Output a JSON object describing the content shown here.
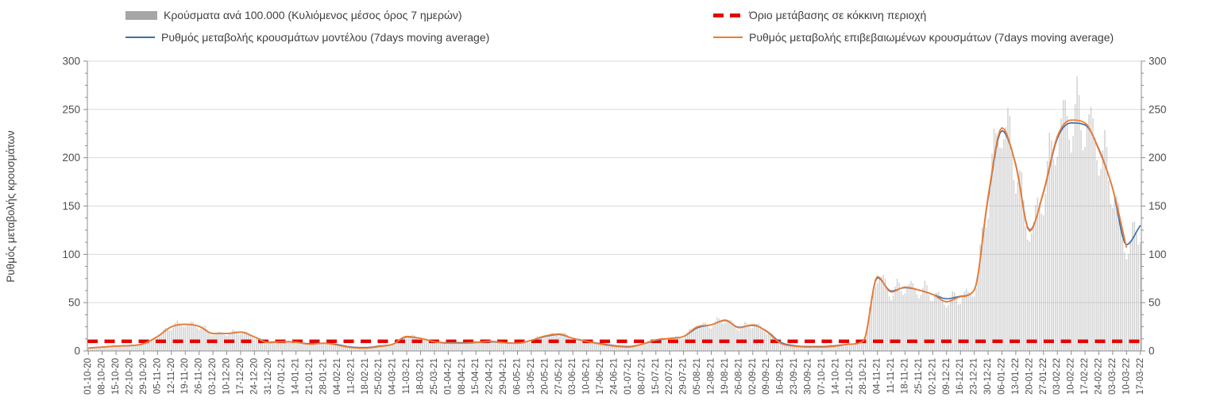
{
  "figure": {
    "background": "#ffffff"
  },
  "chart_data": {
    "type": "bar+line",
    "title": "",
    "x_unit": "daily bars with weekly tick labels (dd-mm-yy)",
    "legend_position": "top",
    "grid": "horizontal",
    "y_axis": {
      "label": "Ρυθμός μεταβολής κρουσμάτων",
      "min": 0,
      "max": 300,
      "major_step": 50,
      "minor_step": 12.5
    },
    "categories": [
      "01-10-20",
      "08-10-20",
      "15-10-20",
      "22-10-20",
      "29-10-20",
      "05-11-20",
      "12-11-20",
      "19-11-20",
      "26-11-20",
      "03-12-20",
      "10-12-20",
      "17-12-20",
      "24-12-20",
      "31-12-20",
      "07-01-21",
      "14-01-21",
      "21-01-21",
      "28-01-21",
      "04-02-21",
      "11-02-21",
      "18-02-21",
      "25-02-21",
      "04-03-21",
      "11-03-21",
      "18-03-21",
      "25-03-21",
      "01-04-21",
      "08-04-21",
      "15-04-21",
      "22-04-21",
      "29-04-21",
      "06-05-21",
      "13-05-21",
      "20-05-21",
      "27-05-21",
      "03-06-21",
      "10-06-21",
      "17-06-21",
      "24-06-21",
      "01-07-21",
      "08-07-21",
      "15-07-21",
      "22-07-21",
      "29-07-21",
      "05-08-21",
      "12-08-21",
      "19-08-21",
      "26-08-21",
      "02-09-21",
      "09-09-21",
      "16-09-21",
      "23-09-21",
      "30-09-21",
      "07-10-21",
      "14-10-21",
      "21-10-21",
      "28-10-21",
      "04-11-21",
      "11-11-21",
      "18-11-21",
      "25-11-21",
      "02-12-21",
      "09-12-21",
      "16-12-21",
      "23-12-21",
      "30-12-21",
      "06-01-22",
      "13-01-22",
      "20-01-22",
      "27-01-22",
      "03-02-22",
      "10-02-22",
      "17-02-22",
      "24-02-22",
      "03-03-22",
      "10-03-22",
      "17-03-22"
    ],
    "series": [
      {
        "key": "bars",
        "name": "Κρούσματα ανά 100.000 (Κυλιόμενος μέσος όρος 7 ημερών)",
        "type": "bar",
        "color": "#a6a6a6",
        "weekly_values": [
          3,
          4,
          5,
          5.5,
          7.5,
          15,
          25,
          27.5,
          25.5,
          18,
          18,
          19.5,
          14.5,
          8.5,
          9.5,
          9,
          7,
          8,
          6,
          3.5,
          3,
          4.5,
          7,
          15,
          13,
          9.5,
          8,
          8,
          8.5,
          10,
          8.5,
          8,
          11,
          15.5,
          17.5,
          13,
          10,
          7,
          5,
          4,
          7,
          11.5,
          13,
          15,
          25,
          27,
          32,
          24,
          27,
          20,
          8,
          5,
          4,
          4,
          5,
          7,
          10.5,
          77,
          61,
          66,
          63,
          58.5,
          51,
          56,
          63,
          160,
          231,
          192,
          124,
          165,
          222,
          239,
          236,
          208,
          168,
          107,
          130
        ],
        "weekly_pattern": [
          0.88,
          0.96,
          1.06,
          1.15,
          1.1,
          0.99,
          0.9
        ]
      },
      {
        "key": "model",
        "name": "Ρυθμός μεταβολής κρουσμάτων μοντέλου (7days moving average)",
        "type": "line",
        "color": "#3f6fae",
        "values": [
          3,
          4,
          5,
          5.5,
          7.5,
          15,
          25,
          27.5,
          25.5,
          18,
          18,
          19.5,
          14.5,
          9,
          9.5,
          9,
          7.5,
          8,
          6.5,
          4,
          3.5,
          5,
          7,
          14.5,
          13,
          9.5,
          8.5,
          8.5,
          9,
          9.5,
          8.5,
          8,
          11,
          15,
          17,
          13,
          10,
          7.5,
          5.5,
          4.5,
          7,
          11,
          13,
          15,
          24,
          27,
          31.5,
          24.5,
          26.5,
          20.5,
          9,
          5.5,
          4.5,
          4.5,
          5.5,
          7,
          10.5,
          76,
          62,
          65.5,
          63,
          58.5,
          54,
          56.5,
          63,
          158,
          228,
          193,
          125,
          164,
          220,
          236,
          234,
          209,
          168,
          110,
          130
        ]
      },
      {
        "key": "confirmed",
        "name": "Ρυθμός μεταβολής επιβεβαιωμένων κρουσμάτων (7days moving average)",
        "type": "line",
        "color": "#ed7d31",
        "values": [
          3,
          4,
          5,
          5.5,
          7.5,
          15,
          25,
          27.5,
          25.5,
          18,
          18,
          19.5,
          14.5,
          8.5,
          9.5,
          9,
          7,
          8,
          6,
          3.5,
          3,
          4.5,
          7,
          15,
          13,
          9.5,
          8,
          8,
          8.5,
          10,
          8.5,
          8,
          11,
          15.5,
          17.5,
          13,
          10,
          7,
          5,
          4,
          7,
          11.5,
          13,
          15,
          25,
          27,
          32,
          24,
          27,
          20,
          8,
          5,
          4,
          4,
          5,
          7,
          10.5,
          77,
          61,
          66,
          63,
          58.5,
          51,
          56,
          63,
          160,
          231,
          192,
          124,
          165,
          222,
          239,
          236,
          208,
          168,
          107,
          null
        ]
      },
      {
        "key": "threshold",
        "name": "Όριο μετάβασης σε κόκκινη περιοχή",
        "type": "dashed-line",
        "color": "#e60000",
        "value": 10
      }
    ]
  }
}
